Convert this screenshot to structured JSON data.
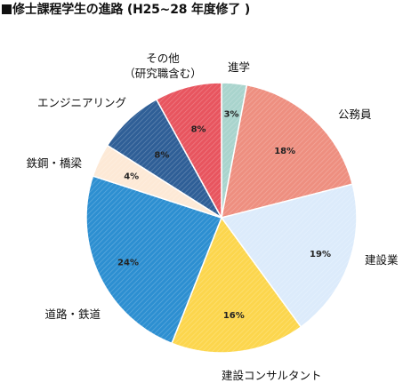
{
  "chart_data": {
    "type": "pie",
    "title": "修士課程学生の進路 (H25~28 年度修了 )",
    "slices": [
      {
        "label": "進学",
        "value": 3,
        "value_label": "3%",
        "color": "#a9d4cd"
      },
      {
        "label": "公務員",
        "value": 18,
        "value_label": "18%",
        "color": "#ee8f80"
      },
      {
        "label": "建設業",
        "value": 19,
        "value_label": "19%",
        "color": "#dcebfb"
      },
      {
        "label": "建設コンサルタント",
        "value": 16,
        "value_label": "16%",
        "color": "#fcd64d"
      },
      {
        "label": "道路・鉄道",
        "value": 24,
        "value_label": "24%",
        "color": "#2d8fd1"
      },
      {
        "label": "鉄鋼・橋梁",
        "value": 4,
        "value_label": "4%",
        "color": "#fde9d6"
      },
      {
        "label": "エンジニアリング",
        "value": 8,
        "value_label": "8%",
        "color": "#2f5f97"
      },
      {
        "label_lines": [
          "その他",
          "（研究職含む）"
        ],
        "value": 8,
        "value_label": "8%",
        "color": "#e8555f"
      }
    ],
    "start": "top",
    "direction": "clockwise"
  }
}
